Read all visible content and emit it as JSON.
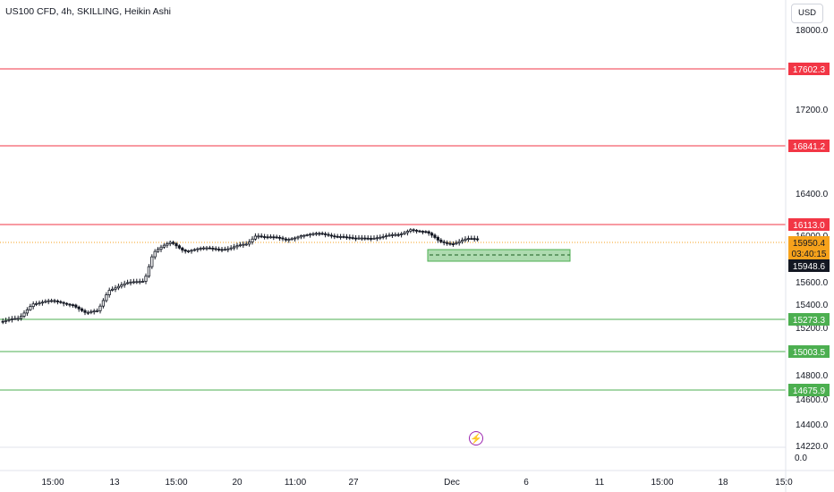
{
  "header": {
    "title": "US100 CFD, 4h, SKILLING, Heikin Ashi",
    "currency": "USD"
  },
  "price_axis": {
    "ticks": [
      "18000.0",
      "17200.0",
      "16400.0",
      "16000.0",
      "15600.0",
      "15400.0",
      "15200.0",
      "14800.0",
      "14600.0",
      "14400.0",
      "14220.0"
    ],
    "pane_zero": "0.0"
  },
  "time_axis": {
    "ticks": [
      "15:00",
      "13",
      "15:00",
      "20",
      "11:00",
      "27",
      "Dec",
      "6",
      "11",
      "15:00",
      "18",
      "15:0"
    ]
  },
  "levels": [
    {
      "label": "17602.3",
      "kind": "resistance",
      "color": "#f23645"
    },
    {
      "label": "16841.2",
      "kind": "resistance",
      "color": "#f23645"
    },
    {
      "label": "16113.0",
      "kind": "resistance",
      "color": "#f23645"
    },
    {
      "label": "15273.3",
      "kind": "support",
      "color": "#4caf50"
    },
    {
      "label": "15003.5",
      "kind": "support",
      "color": "#4caf50"
    },
    {
      "label": "14675.9",
      "kind": "support",
      "color": "#4caf50"
    }
  ],
  "current_price": {
    "label": "15950.4",
    "countdown": "03:40:15",
    "color": "#f7a21b"
  },
  "crosshair_price": {
    "label": "15948.6"
  },
  "icons": {
    "lightning": "lightning-icon"
  },
  "chart_data": {
    "type": "candlestick",
    "title": "US100 CFD, 4h, SKILLING, Heikin Ashi",
    "yaxis_ticks": [
      18000.0,
      17200.0,
      16400.0,
      16000.0,
      15600.0,
      15400.0,
      15200.0,
      14800.0,
      14600.0,
      14400.0,
      14220.0
    ],
    "xaxis_ticks": [
      "15:00",
      "13",
      "15:00",
      "20",
      "11:00",
      "27",
      "Dec",
      "6",
      "11",
      "15:00",
      "18",
      "15:0"
    ],
    "horizontal_levels": [
      17602.3,
      16841.2,
      16113.0,
      15273.3,
      15003.5,
      14675.9
    ],
    "current_price": 15950.4,
    "crosshair_price": 15948.6,
    "demand_zone": [
      15820,
      15920
    ],
    "grid": false
  }
}
